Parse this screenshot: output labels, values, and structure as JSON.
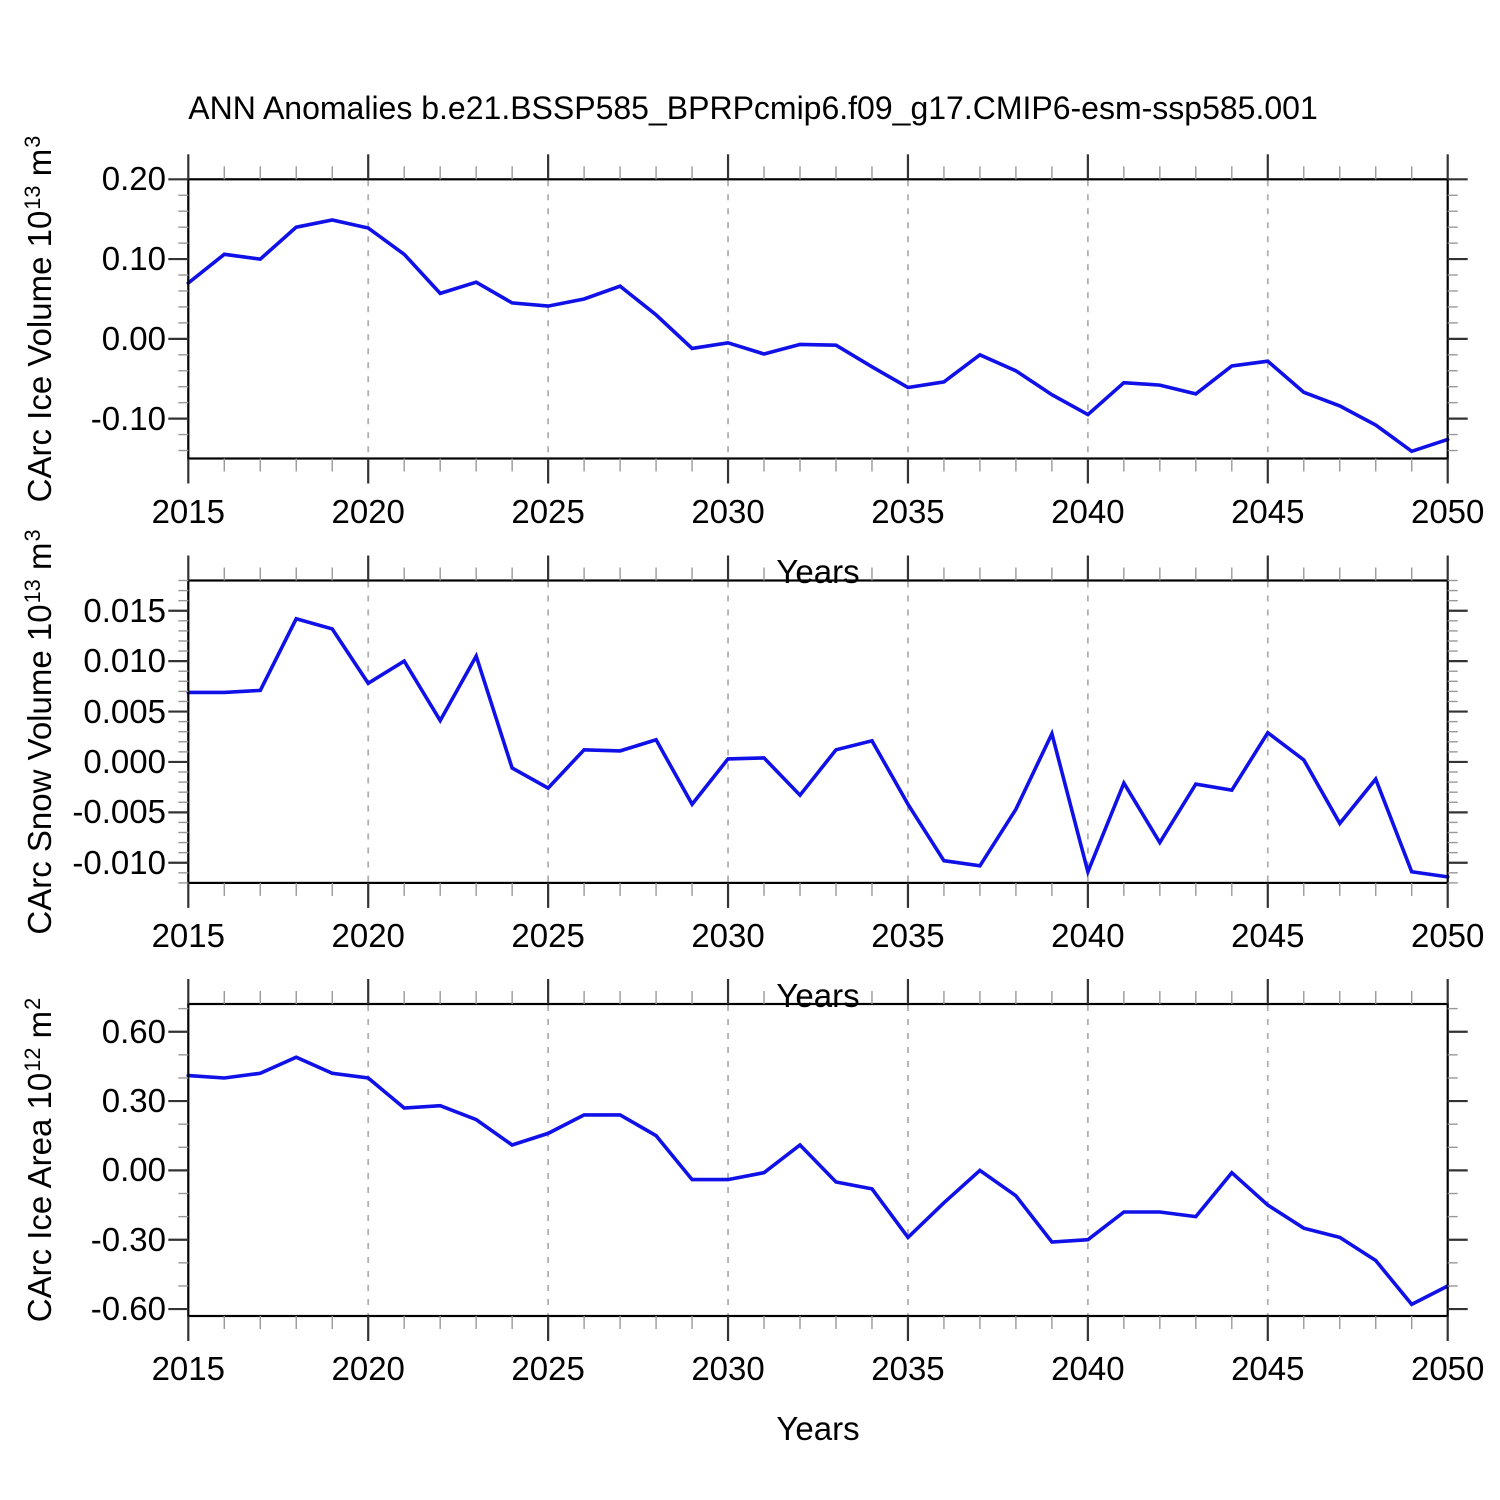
{
  "title": "ANN Anomalies b.e21.BSSP585_BPRPcmip6.f09_g17.CMIP6-esm-ssp585.001",
  "colors": {
    "line": "#1010e8",
    "grid": "#b0b0b0",
    "frame": "#000000",
    "major_tick": "#333333",
    "minor_tick": "#999999",
    "text": "#000000"
  },
  "x_axis": {
    "label": "Years",
    "start": 2015,
    "end": 2050,
    "major_tick_years": [
      2015,
      2020,
      2025,
      2030,
      2035,
      2040,
      2045,
      2050
    ],
    "major_tick_labels": [
      "2015",
      "2020",
      "2025",
      "2030",
      "2035",
      "2040",
      "2045",
      "2050"
    ],
    "minor_tick_step": 1,
    "gridline_years": [
      2020,
      2025,
      2030,
      2035,
      2040,
      2045
    ],
    "years": [
      2015,
      2016,
      2017,
      2018,
      2019,
      2020,
      2021,
      2022,
      2023,
      2024,
      2025,
      2026,
      2027,
      2028,
      2029,
      2030,
      2031,
      2032,
      2033,
      2034,
      2035,
      2036,
      2037,
      2038,
      2039,
      2040,
      2041,
      2042,
      2043,
      2044,
      2045,
      2046,
      2047,
      2048,
      2049,
      2050
    ]
  },
  "chart_data": [
    {
      "type": "line",
      "name": "ice-volume",
      "ylabel_parts": [
        [
          "text",
          "CArc Ice Volume 10"
        ],
        [
          "sup",
          "13"
        ],
        [
          "text",
          " m"
        ],
        [
          "sup",
          "3"
        ]
      ],
      "ylim": [
        -0.15,
        0.2
      ],
      "yticks": [
        {
          "value": 0.2,
          "label": "0.20"
        },
        {
          "value": 0.1,
          "label": "0.10"
        },
        {
          "value": 0.0,
          "label": "0.00"
        },
        {
          "value": -0.1,
          "label": "-0.10"
        }
      ],
      "yminor_step": 0.02,
      "values": [
        0.07,
        0.106,
        0.1,
        0.14,
        0.149,
        0.139,
        0.106,
        0.057,
        0.071,
        0.045,
        0.041,
        0.05,
        0.066,
        0.03,
        -0.012,
        -0.005,
        -0.019,
        -0.007,
        -0.008,
        -0.035,
        -0.061,
        -0.054,
        -0.02,
        -0.04,
        -0.07,
        -0.095,
        -0.055,
        -0.058,
        -0.069,
        -0.034,
        -0.028,
        -0.067,
        -0.084,
        -0.108,
        -0.141,
        -0.126
      ]
    },
    {
      "type": "line",
      "name": "snow-volume",
      "ylabel_parts": [
        [
          "text",
          "CArc Snow Volume 10"
        ],
        [
          "sup",
          "13"
        ],
        [
          "text",
          " m"
        ],
        [
          "sup",
          "3"
        ]
      ],
      "ylim": [
        -0.012,
        0.018
      ],
      "yticks": [
        {
          "value": 0.015,
          "label": "0.015"
        },
        {
          "value": 0.01,
          "label": "0.010"
        },
        {
          "value": 0.005,
          "label": "0.005"
        },
        {
          "value": 0.0,
          "label": "0.000"
        },
        {
          "value": -0.005,
          "label": "-0.005"
        },
        {
          "value": -0.01,
          "label": "-0.010"
        }
      ],
      "yminor_step": 0.001,
      "values": [
        0.0069,
        0.0069,
        0.0071,
        0.0142,
        0.0132,
        0.0078,
        0.01,
        0.0041,
        0.0105,
        -0.0006,
        -0.0026,
        0.0012,
        0.0011,
        0.0022,
        -0.0042,
        0.0003,
        0.0004,
        -0.0033,
        0.0012,
        0.0021,
        -0.0042,
        -0.0098,
        -0.0103,
        -0.0047,
        0.0028,
        -0.0109,
        -0.0021,
        -0.008,
        -0.0022,
        -0.0028,
        0.0029,
        0.0002,
        -0.0061,
        -0.0017,
        -0.0109,
        -0.0114
      ]
    },
    {
      "type": "line",
      "name": "ice-area",
      "ylabel_parts": [
        [
          "text",
          "CArc Ice Area 10"
        ],
        [
          "sup",
          "12"
        ],
        [
          "text",
          " m"
        ],
        [
          "sup",
          "2"
        ]
      ],
      "ylim": [
        -0.63,
        0.72
      ],
      "yticks": [
        {
          "value": 0.6,
          "label": "0.60"
        },
        {
          "value": 0.3,
          "label": "0.30"
        },
        {
          "value": 0.0,
          "label": "0.00"
        },
        {
          "value": -0.3,
          "label": "-0.30"
        },
        {
          "value": -0.6,
          "label": "-0.60"
        }
      ],
      "yminor_step": 0.1,
      "values": [
        0.41,
        0.4,
        0.42,
        0.49,
        0.42,
        0.4,
        0.27,
        0.28,
        0.22,
        0.11,
        0.16,
        0.24,
        0.24,
        0.15,
        -0.04,
        -0.04,
        -0.01,
        0.11,
        -0.05,
        -0.08,
        -0.29,
        -0.14,
        0.0,
        -0.11,
        -0.31,
        -0.3,
        -0.18,
        -0.18,
        -0.2,
        -0.01,
        -0.15,
        -0.25,
        -0.29,
        -0.39,
        -0.58,
        -0.5
      ]
    }
  ]
}
